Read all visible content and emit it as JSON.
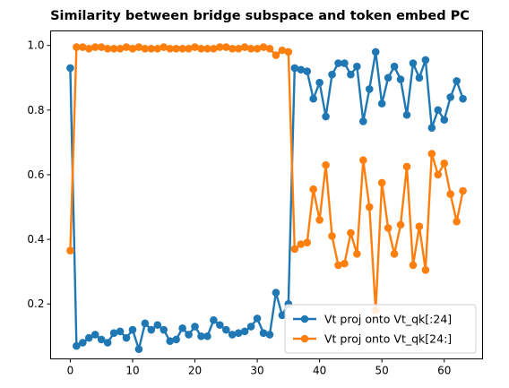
{
  "chart_data": {
    "type": "line",
    "title": "Similarity between bridge subspace and token embed PC",
    "xlabel": "",
    "ylabel": "",
    "xlim": [
      -3.15,
      66.15
    ],
    "ylim": [
      0.03,
      1.045
    ],
    "xticks": [
      0,
      10,
      20,
      30,
      40,
      50,
      60
    ],
    "yticks": [
      0.2,
      0.4,
      0.6,
      0.8,
      1.0
    ],
    "xtick_labels": [
      "0",
      "10",
      "20",
      "30",
      "40",
      "50",
      "60"
    ],
    "ytick_labels": [
      "0.2",
      "0.4",
      "0.6",
      "0.8",
      "1.0"
    ],
    "grid": false,
    "legend_position": "lower-right",
    "x": [
      0,
      1,
      2,
      3,
      4,
      5,
      6,
      7,
      8,
      9,
      10,
      11,
      12,
      13,
      14,
      15,
      16,
      17,
      18,
      19,
      20,
      21,
      22,
      23,
      24,
      25,
      26,
      27,
      28,
      29,
      30,
      31,
      32,
      33,
      34,
      35,
      36,
      37,
      38,
      39,
      40,
      41,
      42,
      43,
      44,
      45,
      46,
      47,
      48,
      49,
      50,
      51,
      52,
      53,
      54,
      55,
      56,
      57,
      58,
      59,
      60,
      61,
      62,
      63
    ],
    "series": [
      {
        "name": "Vt proj onto Vt_qk[:24]",
        "color": "#1f77b4",
        "values": [
          0.93,
          0.07,
          0.08,
          0.095,
          0.105,
          0.09,
          0.08,
          0.11,
          0.115,
          0.095,
          0.12,
          0.06,
          0.14,
          0.12,
          0.135,
          0.12,
          0.085,
          0.09,
          0.125,
          0.105,
          0.13,
          0.1,
          0.1,
          0.15,
          0.135,
          0.12,
          0.105,
          0.11,
          0.115,
          0.13,
          0.155,
          0.11,
          0.105,
          0.235,
          0.165,
          0.2,
          0.93,
          0.925,
          0.92,
          0.835,
          0.885,
          0.78,
          0.91,
          0.945,
          0.945,
          0.91,
          0.935,
          0.765,
          0.865,
          0.98,
          0.82,
          0.9,
          0.935,
          0.895,
          0.785,
          0.945,
          0.9,
          0.955,
          0.745,
          0.8,
          0.77,
          0.84,
          0.89,
          0.835
        ]
      },
      {
        "name": "Vt proj onto Vt_qk[24:]",
        "color": "#ff7f0e",
        "values": [
          0.365,
          0.995,
          0.995,
          0.99,
          0.995,
          0.995,
          0.99,
          0.99,
          0.99,
          0.995,
          0.99,
          0.995,
          0.99,
          0.99,
          0.99,
          0.995,
          0.99,
          0.99,
          0.99,
          0.99,
          0.995,
          0.99,
          0.99,
          0.99,
          0.995,
          0.995,
          0.99,
          0.99,
          0.995,
          0.99,
          0.99,
          0.995,
          0.99,
          0.97,
          0.985,
          0.98,
          0.37,
          0.385,
          0.39,
          0.555,
          0.46,
          0.63,
          0.41,
          0.32,
          0.325,
          0.42,
          0.355,
          0.645,
          0.5,
          0.18,
          0.575,
          0.435,
          0.355,
          0.445,
          0.625,
          0.32,
          0.44,
          0.305,
          0.665,
          0.6,
          0.635,
          0.54,
          0.455,
          0.55
        ]
      }
    ]
  }
}
